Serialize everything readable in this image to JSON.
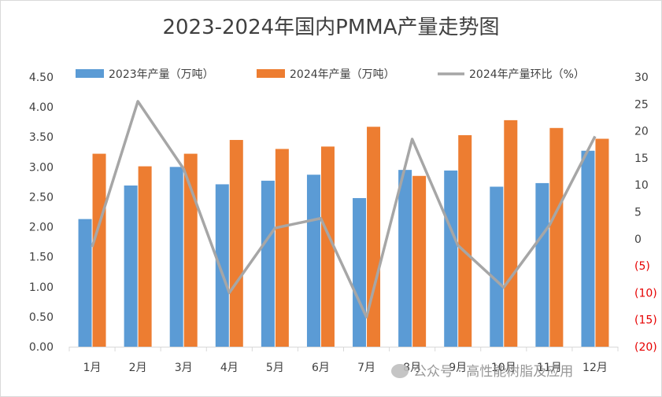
{
  "chart_data": {
    "type": "bar",
    "title": "2023-2024年国内PMMA产量走势图",
    "categories": [
      "1月",
      "2月",
      "3月",
      "4月",
      "5月",
      "6月",
      "7月",
      "8月",
      "9月",
      "10月",
      "11月",
      "12月"
    ],
    "series": [
      {
        "name": "2023年产量（万吨）",
        "type": "bar",
        "axis": "left",
        "color": "#5b9bd5",
        "values": [
          2.13,
          2.69,
          3.0,
          2.71,
          2.77,
          2.87,
          2.48,
          2.95,
          2.94,
          2.67,
          2.73,
          3.27
        ]
      },
      {
        "name": "2024年产量（万吨）",
        "type": "bar",
        "axis": "left",
        "color": "#ed7d31",
        "values": [
          3.22,
          3.01,
          3.22,
          3.45,
          3.3,
          3.34,
          3.67,
          2.85,
          3.53,
          3.78,
          3.65,
          3.47
        ]
      },
      {
        "name": "2024年产量环比（%）",
        "type": "line",
        "axis": "right",
        "color": "#a6a6a6",
        "values": [
          -1.5,
          25.5,
          13.0,
          -10.0,
          2.0,
          3.8,
          -14.5,
          18.5,
          -1.2,
          -9.0,
          2.5,
          19.0
        ]
      }
    ],
    "ylim_left": [
      0,
      4.5
    ],
    "ylim_right": [
      -20,
      30
    ],
    "yticks_left": [
      "0.00",
      "0.50",
      "1.00",
      "1.50",
      "2.00",
      "2.50",
      "3.00",
      "3.50",
      "4.00",
      "4.50"
    ],
    "yticks_right": [
      "(20)",
      "(15)",
      "(10)",
      "(5)",
      "0",
      "5",
      "10",
      "15",
      "20",
      "25",
      "30"
    ],
    "grid": false,
    "legend_position": "top",
    "negative_tick_color": "#e60000"
  },
  "watermark": "公众号 · 高性能树脂及应用"
}
